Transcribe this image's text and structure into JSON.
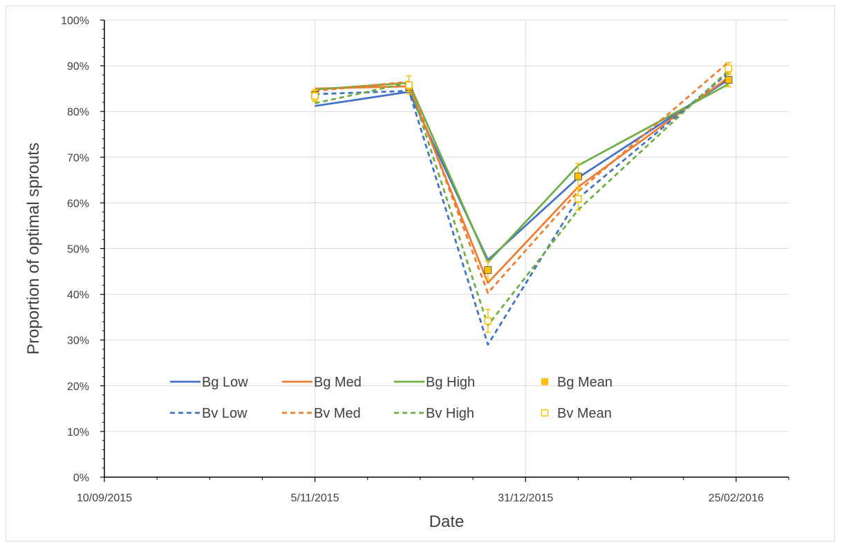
{
  "chart_data": {
    "type": "line",
    "xlabel": "Date",
    "ylabel": "Proportion of optimal sprouts",
    "x_ticks": [
      "10/09/2015",
      "5/11/2015",
      "31/12/2015",
      "25/02/2016"
    ],
    "y_ticks": [
      "0%",
      "10%",
      "20%",
      "30%",
      "40%",
      "50%",
      "60%",
      "70%",
      "80%",
      "90%",
      "100%"
    ],
    "xlim": [
      "2015-09-10",
      "2016-03-10"
    ],
    "ylim": [
      0,
      100
    ],
    "grid": "vertical and horizontal major gridlines",
    "legend_position": "lower-center inside plot",
    "x": [
      "2015-11-05",
      "2015-11-30",
      "2015-12-21",
      "2016-01-14",
      "2016-02-23"
    ],
    "series": [
      {
        "name": "Bg Low",
        "style": "solid",
        "color": "#4472c4",
        "values": [
          81.2,
          84.3,
          47.5,
          65.5,
          87.0
        ]
      },
      {
        "name": "Bg Med",
        "style": "solid",
        "color": "#ed7d31",
        "values": [
          85.0,
          85.5,
          42.5,
          63.5,
          87.5
        ]
      },
      {
        "name": "Bg High",
        "style": "solid",
        "color": "#70ad47",
        "values": [
          84.8,
          86.3,
          47.0,
          68.2,
          86.0
        ]
      },
      {
        "name": "Bg Mean",
        "style": "filled-square",
        "color": "#ffc000",
        "values": [
          83.6,
          85.4,
          45.3,
          65.8,
          86.9
        ],
        "errors": [
          1.2,
          1.0,
          2.0,
          2.8,
          1.5
        ]
      },
      {
        "name": "Bv Low",
        "style": "dashed",
        "color": "#4472c4",
        "values": [
          83.8,
          84.5,
          29.0,
          61.0,
          88.5
        ]
      },
      {
        "name": "Bv Med",
        "style": "dashed",
        "color": "#ed7d31",
        "values": [
          84.5,
          86.5,
          40.3,
          62.5,
          90.8
        ]
      },
      {
        "name": "Bv High",
        "style": "dashed",
        "color": "#70ad47",
        "values": [
          81.8,
          86.3,
          33.2,
          58.5,
          89.0
        ]
      },
      {
        "name": "Bv Mean",
        "style": "open-square",
        "color": "#ffc000",
        "values": [
          83.4,
          85.8,
          34.2,
          60.9,
          89.4
        ],
        "errors": [
          1.2,
          2.0,
          2.5,
          2.5,
          1.3
        ]
      }
    ]
  }
}
